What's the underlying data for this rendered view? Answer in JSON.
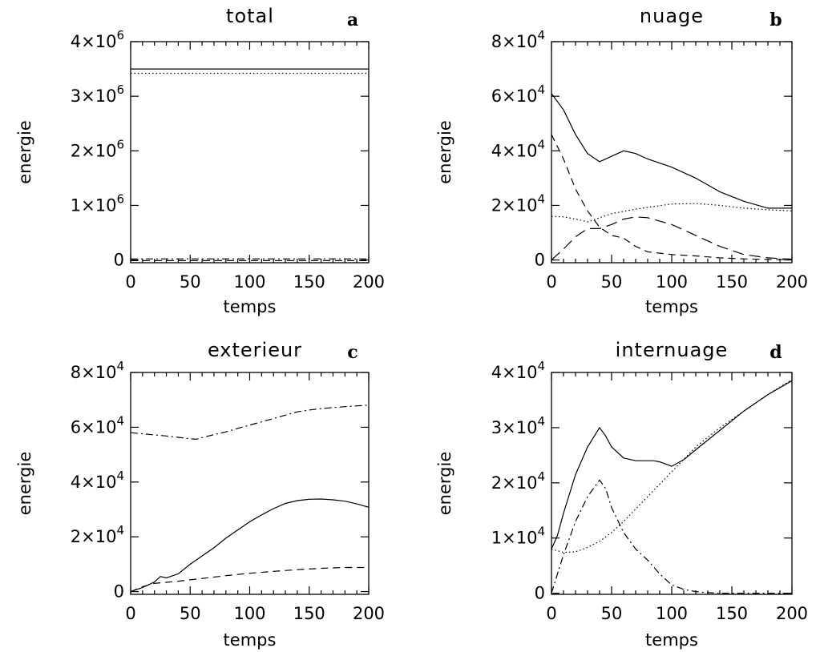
{
  "chart_data": [
    {
      "id": "a",
      "type": "line",
      "title": "total",
      "panel_letter": "a",
      "xlabel": "temps",
      "ylabel": "energie",
      "xlim": [
        0,
        200
      ],
      "ylim": [
        -50000,
        4000000
      ],
      "xticks": [
        0,
        50,
        100,
        150,
        200
      ],
      "yticks": [
        0,
        1000000,
        2000000,
        3000000,
        4000000
      ],
      "ytick_labels": [
        {
          "text": "0",
          "mant": "",
          "exp": ""
        },
        {
          "text": "",
          "mant": "1×10",
          "exp": "6"
        },
        {
          "text": "",
          "mant": "2×10",
          "exp": "6"
        },
        {
          "text": "",
          "mant": "3×10",
          "exp": "6"
        },
        {
          "text": "",
          "mant": "4×10",
          "exp": "6"
        }
      ],
      "series": [
        {
          "style": "solid",
          "x": [
            0,
            200
          ],
          "y": [
            3500000,
            3500000
          ]
        },
        {
          "style": "dotted",
          "x": [
            0,
            200
          ],
          "y": [
            3420000,
            3420000
          ]
        },
        {
          "style": "dashdot",
          "x": [
            0,
            200
          ],
          "y": [
            20000,
            20000
          ]
        },
        {
          "style": "dashed",
          "x": [
            0,
            200
          ],
          "y": [
            -12000,
            -12000
          ]
        }
      ]
    },
    {
      "id": "b",
      "type": "line",
      "title": "nuage",
      "panel_letter": "b",
      "xlabel": "temps",
      "ylabel": "energie",
      "xlim": [
        0,
        200
      ],
      "ylim": [
        -1000,
        80000
      ],
      "xticks": [
        0,
        50,
        100,
        150,
        200
      ],
      "yticks": [
        0,
        20000,
        40000,
        60000,
        80000
      ],
      "ytick_labels": [
        {
          "text": "0",
          "mant": "",
          "exp": ""
        },
        {
          "text": "",
          "mant": "2×10",
          "exp": "4"
        },
        {
          "text": "",
          "mant": "4×10",
          "exp": "4"
        },
        {
          "text": "",
          "mant": "6×10",
          "exp": "4"
        },
        {
          "text": "",
          "mant": "8×10",
          "exp": "4"
        }
      ],
      "series": [
        {
          "style": "solid",
          "x": [
            0,
            10,
            20,
            30,
            40,
            50,
            60,
            70,
            80,
            100,
            120,
            140,
            160,
            180,
            200
          ],
          "y": [
            61000,
            55000,
            46000,
            39000,
            36000,
            38000,
            40000,
            39000,
            37000,
            34000,
            30000,
            25000,
            21500,
            19000,
            19000
          ]
        },
        {
          "style": "dashed",
          "x": [
            0,
            10,
            20,
            30,
            40,
            50,
            60,
            70,
            80,
            100,
            120,
            140,
            160,
            180,
            200
          ],
          "y": [
            46000,
            37000,
            26000,
            18000,
            12000,
            9000,
            8000,
            5000,
            3000,
            2000,
            1500,
            800,
            400,
            200,
            100
          ]
        },
        {
          "style": "dotted",
          "x": [
            0,
            10,
            20,
            30,
            40,
            50,
            60,
            70,
            80,
            100,
            120,
            140,
            160,
            180,
            200
          ],
          "y": [
            16000,
            15800,
            15000,
            14000,
            15500,
            17000,
            17800,
            18600,
            19300,
            20500,
            20700,
            20000,
            19000,
            18400,
            18000
          ]
        },
        {
          "style": "longdash",
          "x": [
            0,
            10,
            20,
            30,
            40,
            50,
            60,
            70,
            80,
            100,
            120,
            140,
            160,
            180,
            200
          ],
          "y": [
            0,
            4000,
            8500,
            11500,
            11500,
            13000,
            15000,
            15800,
            15500,
            13000,
            9000,
            5000,
            2000,
            800,
            300
          ]
        }
      ]
    },
    {
      "id": "c",
      "type": "line",
      "title": "exterieur",
      "panel_letter": "c",
      "xlabel": "temps",
      "ylabel": "energie",
      "xlim": [
        0,
        200
      ],
      "ylim": [
        -1000,
        80000
      ],
      "xticks": [
        0,
        50,
        100,
        150,
        200
      ],
      "yticks": [
        0,
        20000,
        40000,
        60000,
        80000
      ],
      "ytick_labels": [
        {
          "text": "0",
          "mant": "",
          "exp": ""
        },
        {
          "text": "",
          "mant": "2×10",
          "exp": "4"
        },
        {
          "text": "",
          "mant": "4×10",
          "exp": "4"
        },
        {
          "text": "",
          "mant": "6×10",
          "exp": "4"
        },
        {
          "text": "",
          "mant": "8×10",
          "exp": "4"
        }
      ],
      "series": [
        {
          "style": "dashdot",
          "x": [
            0,
            10,
            20,
            30,
            40,
            50,
            55,
            60,
            70,
            80,
            90,
            100,
            110,
            120,
            130,
            140,
            150,
            160,
            170,
            180,
            190,
            200
          ],
          "y": [
            58000,
            57600,
            57200,
            56800,
            56300,
            55800,
            55600,
            56200,
            57300,
            58300,
            59600,
            60800,
            62000,
            63200,
            64400,
            65600,
            66300,
            66800,
            67200,
            67500,
            67800,
            68000
          ]
        },
        {
          "style": "solid",
          "x": [
            0,
            10,
            20,
            25,
            30,
            40,
            50,
            60,
            70,
            80,
            90,
            100,
            110,
            120,
            130,
            140,
            150,
            160,
            170,
            180,
            190,
            200
          ],
          "y": [
            0,
            1500,
            3500,
            5500,
            5000,
            6500,
            10000,
            13000,
            16000,
            19500,
            22500,
            25500,
            28000,
            30300,
            32200,
            33200,
            33700,
            33800,
            33500,
            33000,
            32000,
            30800
          ]
        },
        {
          "style": "dashed",
          "x": [
            0,
            10,
            20,
            30,
            40,
            50,
            60,
            80,
            100,
            120,
            140,
            160,
            180,
            200
          ],
          "y": [
            0,
            1800,
            3000,
            3400,
            3800,
            4300,
            4800,
            5800,
            6700,
            7400,
            8000,
            8500,
            8800,
            8800
          ]
        }
      ]
    },
    {
      "id": "d",
      "type": "line",
      "title": "internuage",
      "panel_letter": "d",
      "xlabel": "temps",
      "ylabel": "energie",
      "xlim": [
        0,
        200
      ],
      "ylim": [
        -200,
        40000
      ],
      "xticks": [
        0,
        50,
        100,
        150,
        200
      ],
      "yticks": [
        0,
        10000,
        20000,
        30000,
        40000
      ],
      "ytick_labels": [
        {
          "text": "0",
          "mant": "",
          "exp": ""
        },
        {
          "text": "",
          "mant": "1×10",
          "exp": "4"
        },
        {
          "text": "",
          "mant": "2×10",
          "exp": "4"
        },
        {
          "text": "",
          "mant": "3×10",
          "exp": "4"
        },
        {
          "text": "",
          "mant": "4×10",
          "exp": "4"
        }
      ],
      "series": [
        {
          "style": "solid",
          "x": [
            0,
            5,
            10,
            20,
            30,
            40,
            45,
            50,
            60,
            70,
            80,
            85,
            90,
            100,
            110,
            120,
            140,
            160,
            180,
            200
          ],
          "y": [
            8000,
            10500,
            14500,
            21500,
            26500,
            30000,
            28500,
            26500,
            24500,
            24000,
            24000,
            24000,
            23800,
            23000,
            24200,
            26000,
            29500,
            33000,
            36000,
            38500
          ]
        },
        {
          "style": "dotted",
          "x": [
            0,
            10,
            20,
            30,
            40,
            50,
            60,
            80,
            100,
            120,
            140,
            160,
            180,
            200
          ],
          "y": [
            8000,
            7400,
            7500,
            8300,
            9400,
            11000,
            13000,
            17500,
            22000,
            26500,
            30000,
            33000,
            36000,
            38700
          ]
        },
        {
          "style": "dashdot",
          "x": [
            0,
            10,
            20,
            30,
            40,
            45,
            50,
            60,
            70,
            80,
            90,
            100,
            110,
            120,
            130,
            140,
            150,
            200
          ],
          "y": [
            0,
            7000,
            13000,
            17500,
            20500,
            19000,
            15500,
            11000,
            8000,
            6000,
            3500,
            1500,
            700,
            300,
            100,
            0,
            0,
            0
          ]
        }
      ]
    }
  ]
}
